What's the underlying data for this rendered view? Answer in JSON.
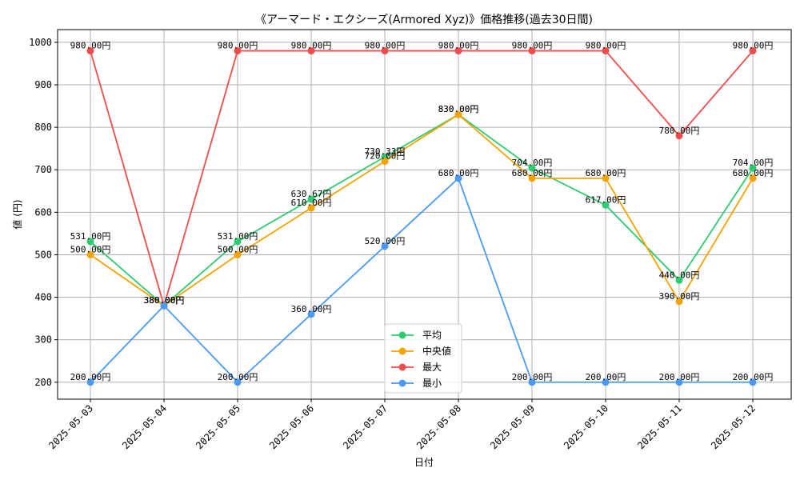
{
  "chart_data": {
    "type": "line",
    "title": "《アーマード・エクシーズ(Armored Xyz)》価格推移(過去30日間)",
    "xlabel": "日付",
    "ylabel": "値 (円)",
    "ylim": [
      160,
      1030
    ],
    "yticks": [
      200,
      300,
      400,
      500,
      600,
      700,
      800,
      900,
      1000
    ],
    "grid": true,
    "legend_position": "bottom-center",
    "label_suffix": "円",
    "categories": [
      "2025-05-03",
      "2025-05-04",
      "2025-05-05",
      "2025-05-06",
      "2025-05-07",
      "2025-05-08",
      "2025-05-09",
      "2025-05-10",
      "2025-05-11",
      "2025-05-12"
    ],
    "series": [
      {
        "name": "平均",
        "color": "#2ecc71",
        "values": [
          531.0,
          380.0,
          531.0,
          630.67,
          730.33,
          830.0,
          704.0,
          617.0,
          440.0,
          704.0
        ]
      },
      {
        "name": "中央値",
        "color": "#f5a300",
        "values": [
          500.0,
          380.0,
          500.0,
          610.0,
          720.0,
          830.0,
          680.0,
          680.0,
          390.0,
          680.0
        ]
      },
      {
        "name": "最大",
        "color": "#f04c4c",
        "values": [
          980.0,
          380.0,
          980.0,
          980.0,
          980.0,
          980.0,
          980.0,
          980.0,
          780.0,
          980.0
        ]
      },
      {
        "name": "最小",
        "color": "#4a9af5",
        "values": [
          200.0,
          380.0,
          200.0,
          360.0,
          520.0,
          680.0,
          200.0,
          200.0,
          200.0,
          200.0
        ]
      }
    ]
  }
}
